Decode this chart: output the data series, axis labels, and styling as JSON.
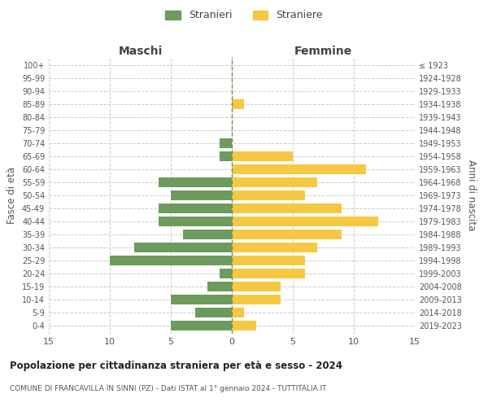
{
  "age_groups": [
    "0-4",
    "5-9",
    "10-14",
    "15-19",
    "20-24",
    "25-29",
    "30-34",
    "35-39",
    "40-44",
    "45-49",
    "50-54",
    "55-59",
    "60-64",
    "65-69",
    "70-74",
    "75-79",
    "80-84",
    "85-89",
    "90-94",
    "95-99",
    "100+"
  ],
  "birth_years": [
    "2019-2023",
    "2014-2018",
    "2009-2013",
    "2004-2008",
    "1999-2003",
    "1994-1998",
    "1989-1993",
    "1984-1988",
    "1979-1983",
    "1974-1978",
    "1969-1973",
    "1964-1968",
    "1959-1963",
    "1954-1958",
    "1949-1953",
    "1944-1948",
    "1939-1943",
    "1934-1938",
    "1929-1933",
    "1924-1928",
    "≤ 1923"
  ],
  "males": [
    5,
    3,
    5,
    2,
    1,
    10,
    8,
    4,
    6,
    6,
    5,
    6,
    0,
    1,
    1,
    0,
    0,
    0,
    0,
    0,
    0
  ],
  "females": [
    2,
    1,
    4,
    4,
    6,
    6,
    7,
    9,
    12,
    9,
    6,
    7,
    11,
    5,
    0,
    0,
    0,
    1,
    0,
    0,
    0
  ],
  "male_color": "#6d9b5e",
  "female_color": "#f5c842",
  "male_label": "Stranieri",
  "female_label": "Straniere",
  "title": "Popolazione per cittadinanza straniera per età e sesso - 2024",
  "subtitle": "COMUNE DI FRANCAVILLA IN SINNI (PZ) - Dati ISTAT al 1° gennaio 2024 - TUTTITALIA.IT",
  "ylabel_left": "Fasce di età",
  "ylabel_right": "Anni di nascita",
  "xlabel_left": "Maschi",
  "xlabel_right": "Femmine",
  "xlim": 15,
  "bg_color": "#ffffff",
  "grid_color": "#cccccc"
}
